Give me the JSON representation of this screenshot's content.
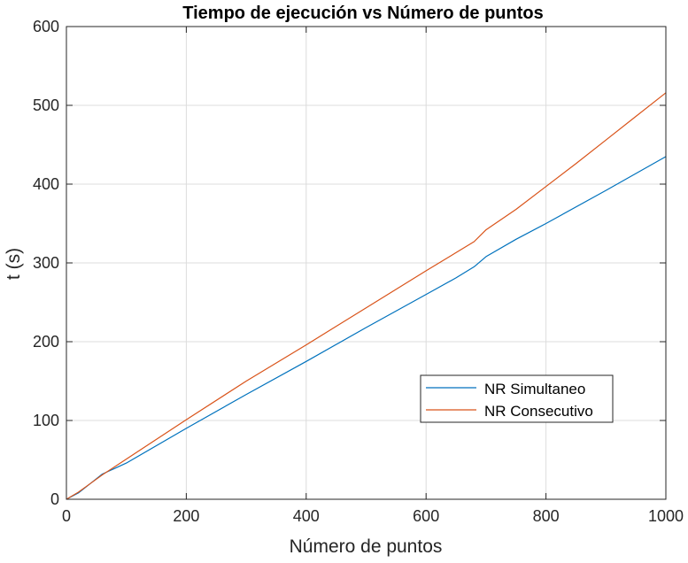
{
  "chart_data": {
    "type": "line",
    "title": "Tiempo de ejecución vs Número de puntos",
    "xlabel": "Número de puntos",
    "ylabel": "t (s)",
    "xlim": [
      0,
      1000
    ],
    "ylim": [
      0,
      600
    ],
    "xticks": [
      0,
      200,
      400,
      600,
      800,
      1000
    ],
    "yticks": [
      0,
      100,
      200,
      300,
      400,
      500,
      600
    ],
    "grid": true,
    "legend_position": "lower-right",
    "series": [
      {
        "name": "NR Simultaneo",
        "color": "#0072BD",
        "x": [
          0,
          20,
          40,
          60,
          80,
          100,
          200,
          300,
          400,
          500,
          600,
          650,
          680,
          700,
          750,
          800,
          900,
          1000
        ],
        "y": [
          0,
          8,
          20,
          32,
          39,
          46,
          90,
          133,
          175,
          218,
          260,
          281,
          295,
          308,
          330,
          350,
          392,
          435
        ]
      },
      {
        "name": "NR Consecutivo",
        "color": "#D95319",
        "x": [
          0,
          20,
          40,
          60,
          80,
          100,
          200,
          300,
          400,
          500,
          600,
          650,
          680,
          700,
          750,
          800,
          850,
          900,
          950,
          1000
        ],
        "y": [
          0,
          9,
          20,
          31,
          41,
          51,
          101,
          150,
          196,
          243,
          290,
          313,
          327,
          342,
          368,
          397,
          426,
          456,
          486,
          516
        ]
      }
    ]
  }
}
